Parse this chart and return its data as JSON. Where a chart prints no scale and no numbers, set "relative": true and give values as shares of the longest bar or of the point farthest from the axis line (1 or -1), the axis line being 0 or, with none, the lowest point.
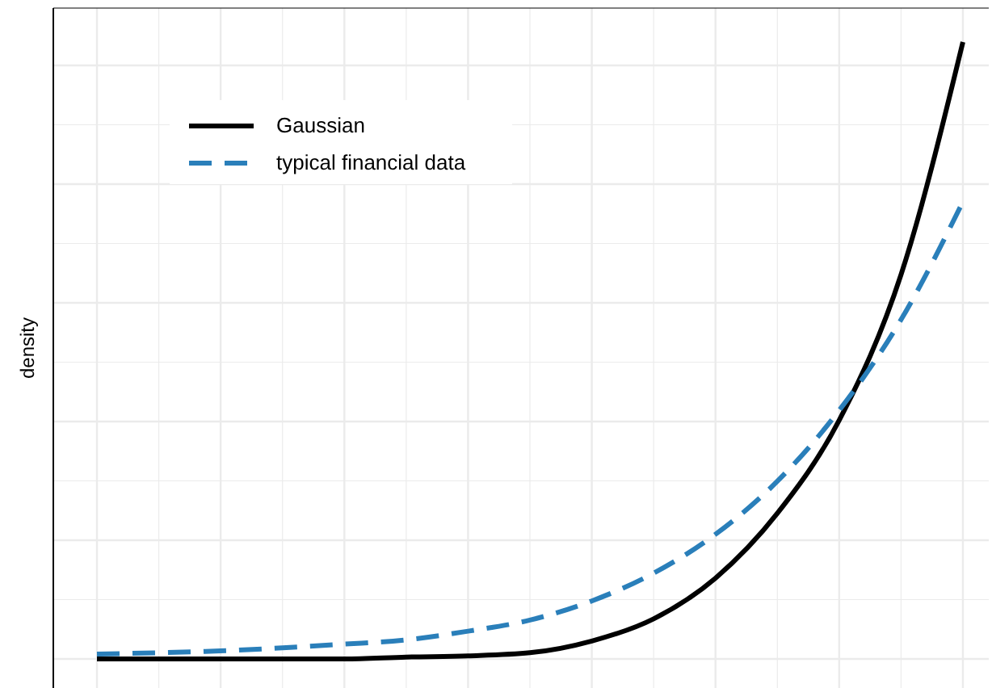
{
  "chart_data": {
    "type": "line",
    "relative": true,
    "ylabel": "density",
    "grid": true,
    "legend": "top left",
    "categories": [
      null,
      null,
      null,
      null,
      null,
      null,
      null,
      null,
      null,
      null,
      null,
      null,
      null,
      null,
      null
    ],
    "series": [
      {
        "name": "Gaussian",
        "color": "#000000",
        "line_style": "solid",
        "values": [
          0,
          0,
          0,
          0,
          0,
          0.003,
          0.005,
          0.01,
          0.029,
          0.065,
          0.131,
          0.236,
          0.387,
          0.623,
          1
        ]
      },
      {
        "name": "typical financial data",
        "color": "#2a7fba",
        "line_style": "dashed",
        "values": [
          0.008,
          0.01,
          0.013,
          0.018,
          0.024,
          0.031,
          0.045,
          0.063,
          0.094,
          0.139,
          0.202,
          0.288,
          0.403,
          0.55,
          0.741
        ]
      }
    ]
  }
}
